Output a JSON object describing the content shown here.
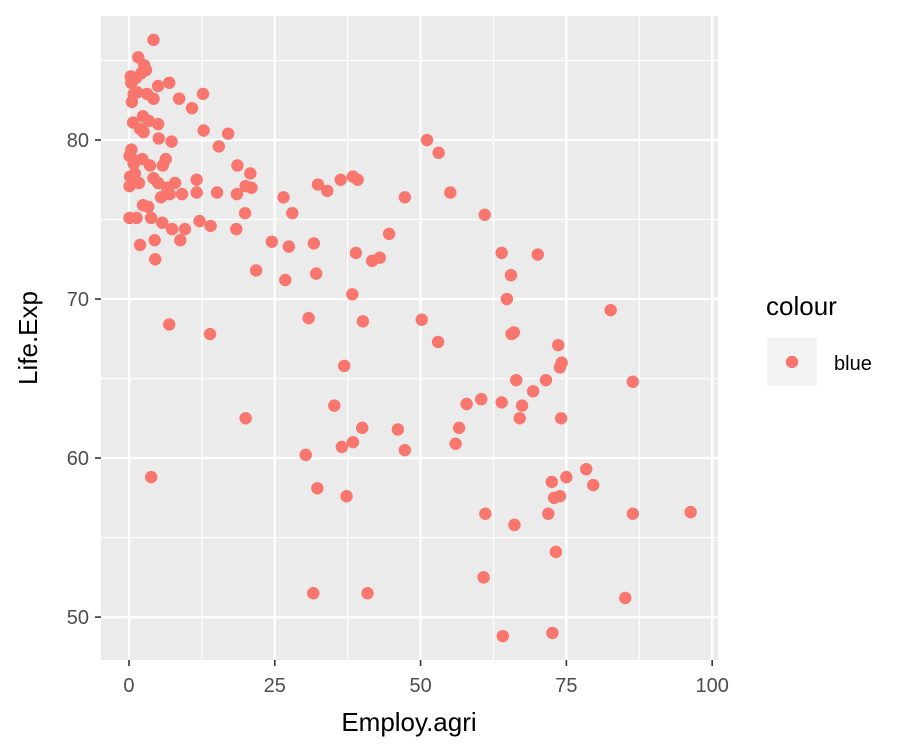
{
  "chart_data": {
    "type": "scatter",
    "title": "",
    "xlabel": "Employ.agri",
    "ylabel": "Life.Exp",
    "xlim": [
      -4.8,
      101
    ],
    "ylim": [
      47.3,
      87.8
    ],
    "x_ticks": [
      0,
      25,
      50,
      75,
      100
    ],
    "x_tick_labels": [
      "0",
      "25",
      "50",
      "75",
      "100"
    ],
    "y_ticks": [
      50,
      60,
      70,
      80
    ],
    "y_tick_labels": [
      "50",
      "60",
      "70",
      "80"
    ],
    "x_minor_ticks": [
      12.5,
      37.5,
      62.5,
      87.5
    ],
    "y_minor_ticks": [
      55,
      65,
      75,
      85
    ],
    "grid": true,
    "panel_background": "#EBEBEB",
    "grid_color": "#FFFFFF",
    "point_color": "#F8766D",
    "legend": {
      "title": "colour",
      "entries": [
        "blue"
      ],
      "position": "right"
    },
    "series": [
      {
        "name": "blue",
        "points": [
          [
            4.2,
            86.3
          ],
          [
            1.6,
            85.2
          ],
          [
            2.6,
            84.7
          ],
          [
            0.3,
            84.0
          ],
          [
            2.1,
            84.2
          ],
          [
            1.2,
            83.9
          ],
          [
            0.4,
            83.6
          ],
          [
            2.9,
            84.4
          ],
          [
            6.9,
            83.6
          ],
          [
            5.0,
            83.4
          ],
          [
            1.4,
            83.0
          ],
          [
            0.8,
            82.9
          ],
          [
            3.1,
            82.9
          ],
          [
            12.7,
            82.9
          ],
          [
            4.2,
            82.6
          ],
          [
            8.6,
            82.6
          ],
          [
            0.5,
            82.4
          ],
          [
            10.8,
            82.0
          ],
          [
            2.4,
            81.5
          ],
          [
            3.4,
            81.2
          ],
          [
            0.7,
            81.1
          ],
          [
            1.9,
            80.7
          ],
          [
            2.5,
            80.5
          ],
          [
            5.0,
            81.0
          ],
          [
            12.8,
            80.6
          ],
          [
            17.0,
            80.4
          ],
          [
            5.1,
            80.1
          ],
          [
            7.3,
            79.9
          ],
          [
            51.1,
            80.0
          ],
          [
            15.4,
            79.6
          ],
          [
            53.1,
            79.2
          ],
          [
            0.4,
            79.4
          ],
          [
            0.1,
            79.0
          ],
          [
            2.3,
            78.8
          ],
          [
            1.2,
            78.7
          ],
          [
            0.8,
            78.5
          ],
          [
            3.6,
            78.4
          ],
          [
            5.8,
            78.4
          ],
          [
            6.3,
            78.8
          ],
          [
            18.6,
            78.4
          ],
          [
            0.2,
            77.7
          ],
          [
            1.0,
            77.9
          ],
          [
            20.8,
            77.9
          ],
          [
            1.7,
            77.3
          ],
          [
            4.2,
            77.6
          ],
          [
            5.0,
            77.3
          ],
          [
            6.5,
            77.0
          ],
          [
            7.9,
            77.3
          ],
          [
            11.6,
            77.5
          ],
          [
            20.0,
            77.1
          ],
          [
            21.0,
            77.0
          ],
          [
            38.4,
            77.7
          ],
          [
            39.2,
            77.5
          ],
          [
            36.3,
            77.5
          ],
          [
            32.4,
            77.2
          ],
          [
            34.0,
            76.8
          ],
          [
            15.1,
            76.7
          ],
          [
            11.6,
            76.7
          ],
          [
            18.5,
            76.6
          ],
          [
            9.1,
            76.6
          ],
          [
            7.0,
            76.6
          ],
          [
            5.5,
            76.4
          ],
          [
            0.1,
            77.1
          ],
          [
            26.5,
            76.4
          ],
          [
            47.3,
            76.4
          ],
          [
            55.1,
            76.7
          ],
          [
            3.3,
            75.8
          ],
          [
            2.4,
            75.9
          ],
          [
            28.0,
            75.4
          ],
          [
            19.9,
            75.4
          ],
          [
            0.1,
            75.1
          ],
          [
            1.3,
            75.1
          ],
          [
            3.8,
            75.1
          ],
          [
            12.1,
            74.9
          ],
          [
            14.0,
            74.6
          ],
          [
            5.7,
            74.8
          ],
          [
            7.4,
            74.4
          ],
          [
            9.6,
            74.4
          ],
          [
            18.4,
            74.4
          ],
          [
            61.0,
            75.3
          ],
          [
            44.6,
            74.1
          ],
          [
            4.4,
            73.7
          ],
          [
            8.8,
            73.7
          ],
          [
            1.9,
            73.4
          ],
          [
            24.5,
            73.6
          ],
          [
            27.4,
            73.3
          ],
          [
            31.7,
            73.5
          ],
          [
            63.9,
            72.9
          ],
          [
            70.1,
            72.8
          ],
          [
            38.9,
            72.9
          ],
          [
            43.0,
            72.6
          ],
          [
            41.7,
            72.4
          ],
          [
            4.5,
            72.5
          ],
          [
            21.8,
            71.8
          ],
          [
            32.1,
            71.6
          ],
          [
            65.5,
            71.5
          ],
          [
            26.8,
            71.2
          ],
          [
            38.3,
            70.3
          ],
          [
            64.8,
            70.0
          ],
          [
            82.6,
            69.3
          ],
          [
            30.8,
            68.8
          ],
          [
            50.2,
            68.7
          ],
          [
            40.1,
            68.6
          ],
          [
            6.9,
            68.4
          ],
          [
            65.6,
            67.8
          ],
          [
            66.0,
            67.9
          ],
          [
            13.9,
            67.8
          ],
          [
            53.0,
            67.3
          ],
          [
            73.6,
            67.1
          ],
          [
            73.9,
            65.7
          ],
          [
            74.2,
            66.0
          ],
          [
            36.9,
            65.8
          ],
          [
            66.4,
            64.9
          ],
          [
            71.5,
            64.9
          ],
          [
            86.4,
            64.8
          ],
          [
            69.3,
            64.2
          ],
          [
            60.4,
            63.7
          ],
          [
            57.9,
            63.4
          ],
          [
            63.9,
            63.5
          ],
          [
            67.4,
            63.3
          ],
          [
            35.2,
            63.3
          ],
          [
            74.1,
            62.5
          ],
          [
            67.0,
            62.5
          ],
          [
            20.0,
            62.5
          ],
          [
            40.0,
            61.9
          ],
          [
            46.1,
            61.8
          ],
          [
            56.6,
            61.9
          ],
          [
            38.4,
            61.0
          ],
          [
            56.0,
            60.9
          ],
          [
            36.5,
            60.7
          ],
          [
            47.3,
            60.5
          ],
          [
            30.3,
            60.2
          ],
          [
            75.0,
            58.8
          ],
          [
            78.4,
            59.3
          ],
          [
            72.5,
            58.5
          ],
          [
            79.6,
            58.3
          ],
          [
            3.8,
            58.8
          ],
          [
            32.3,
            58.1
          ],
          [
            73.9,
            57.6
          ],
          [
            72.9,
            57.5
          ],
          [
            37.3,
            57.6
          ],
          [
            61.1,
            56.5
          ],
          [
            71.9,
            56.5
          ],
          [
            86.4,
            56.5
          ],
          [
            96.3,
            56.6
          ],
          [
            66.1,
            55.8
          ],
          [
            73.2,
            54.1
          ],
          [
            60.8,
            52.5
          ],
          [
            31.6,
            51.5
          ],
          [
            40.9,
            51.5
          ],
          [
            85.1,
            51.2
          ],
          [
            64.1,
            48.8
          ],
          [
            72.6,
            49.0
          ]
        ]
      }
    ]
  }
}
